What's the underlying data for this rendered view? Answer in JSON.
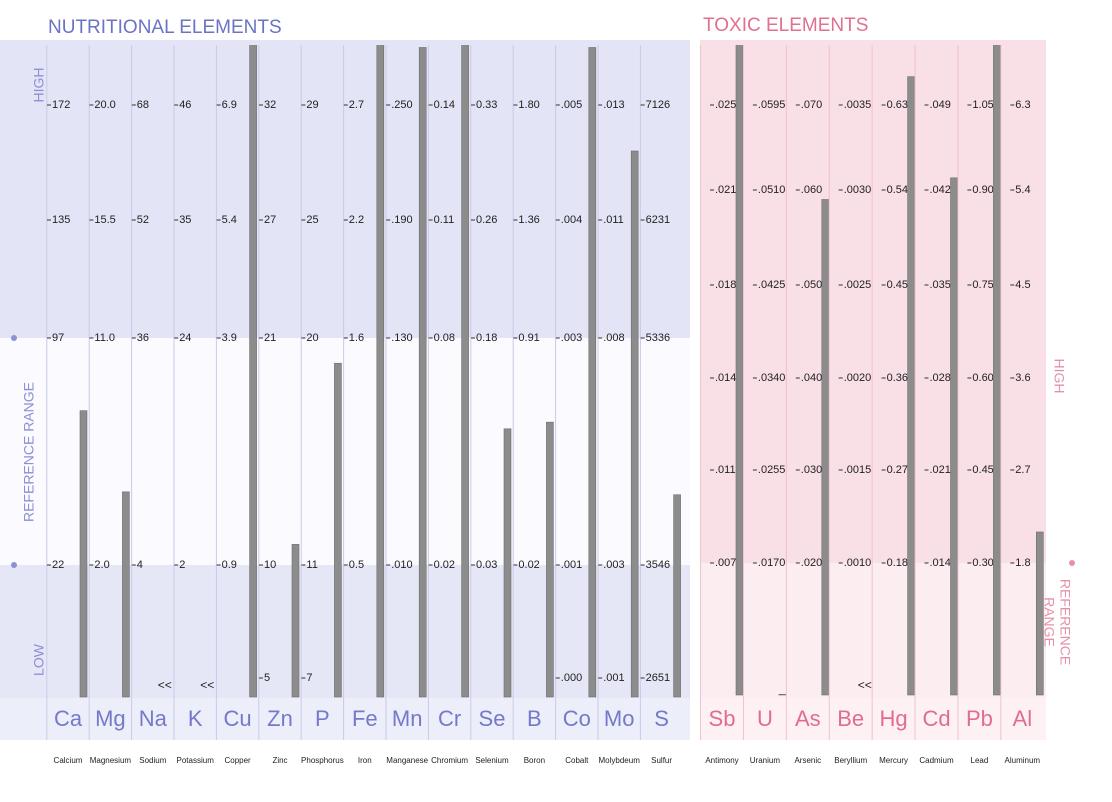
{
  "chart_data": [
    {
      "type": "bar",
      "title": "NUTRITIONAL ELEMENTS",
      "side_labels": [
        "HIGH",
        "REFERENCE RANGE",
        "LOW"
      ],
      "categories": [
        "Ca",
        "Mg",
        "Na",
        "K",
        "Cu",
        "Zn",
        "P",
        "Fe",
        "Mn",
        "Cr",
        "Se",
        "B",
        "Co",
        "Mo",
        "S"
      ],
      "category_names": [
        "Calcium",
        "Magnesium",
        "Sodium",
        "Potassium",
        "Copper",
        "Zinc",
        "Phosphorus",
        "Iron",
        "Manganese",
        "Chromium",
        "Selenium",
        "Boron",
        "Cobalt",
        "Molybdeum",
        "Sulfur"
      ],
      "values": [
        73,
        4.9,
        null,
        null,
        7.7,
        11.0,
        19,
        3.0,
        0.28,
        0.16,
        0.12,
        0.58,
        0.0055,
        0.0122,
        4100
      ],
      "value_labels": [
        null,
        null,
        "<<",
        "<<",
        null,
        null,
        null,
        null,
        null,
        null,
        null,
        null,
        null,
        null,
        null
      ],
      "color": "#8c8c8c",
      "scales": [
        [
          172,
          135,
          97,
          22
        ],
        [
          {
            "value": 20,
            "label": "20.0"
          },
          15.5,
          {
            "value": 11,
            "label": "11.0"
          },
          {
            "value": 2,
            "label": "2.0"
          }
        ],
        [
          68,
          52,
          36,
          4
        ],
        [
          46,
          35,
          24,
          2
        ],
        [
          6.9,
          5.4,
          3.9,
          0.9
        ],
        [
          32,
          27,
          21,
          10,
          5
        ],
        [
          29,
          25,
          20,
          11,
          7
        ],
        [
          2.7,
          2.2,
          1.6,
          0.5
        ],
        [
          {
            "value": 0.25,
            "label": ".250"
          },
          {
            "value": 0.19,
            "label": ".190"
          },
          {
            "value": 0.13,
            "label": ".130"
          },
          {
            "value": 0.01,
            "label": ".010"
          }
        ],
        [
          0.14,
          0.11,
          0.08,
          0.02
        ],
        [
          0.33,
          0.26,
          0.18,
          0.03
        ],
        [
          {
            "value": 1.8,
            "label": "1.80"
          },
          1.36,
          0.91,
          0.02
        ],
        [
          {
            "value": 0.005,
            "label": ".005"
          },
          {
            "value": 0.004,
            "label": ".004"
          },
          {
            "value": 0.003,
            "label": ".003"
          },
          {
            "value": 0.001,
            "label": ".001"
          },
          {
            "value": 0,
            "label": ".000"
          }
        ],
        [
          {
            "value": 0.013,
            "label": ".013"
          },
          {
            "value": 0.011,
            "label": ".011"
          },
          {
            "value": 0.008,
            "label": ".008"
          },
          {
            "value": 0.003,
            "label": ".003"
          },
          {
            "value": 0.001,
            "label": ".001"
          }
        ],
        [
          7126,
          6231,
          5336,
          3546,
          2651
        ]
      ]
    },
    {
      "type": "bar",
      "title": "TOXIC ELEMENTS",
      "side_labels": [
        "HIGH",
        "REFERENCE",
        "RANGE"
      ],
      "categories": [
        "Sb",
        "U",
        "As",
        "Be",
        "Hg",
        "Cd",
        "Pb",
        "Al"
      ],
      "category_names": [
        "Antimony",
        "Uranium",
        "Arsenic",
        "Beryllium",
        "Mercury",
        "Cadmium",
        "Lead",
        "Aluminum"
      ],
      "values": [
        0.028,
        0.005,
        0.059,
        null,
        0.66,
        0.043,
        1.16,
        2.1
      ],
      "value_labels": [
        null,
        null,
        null,
        "<<",
        null,
        null,
        null,
        null
      ],
      "color": "#8c8c8c",
      "scales": [
        [
          {
            "value": 0.025,
            "label": ".025"
          },
          {
            "value": 0.021,
            "label": ".021"
          },
          {
            "value": 0.018,
            "label": ".018"
          },
          {
            "value": 0.014,
            "label": ".014"
          },
          {
            "value": 0.011,
            "label": ".011"
          },
          {
            "value": 0.007,
            "label": ".007"
          }
        ],
        [
          {
            "value": 0.0595,
            "label": ".0595"
          },
          {
            "value": 0.051,
            "label": ".0510"
          },
          {
            "value": 0.0425,
            "label": ".0425"
          },
          {
            "value": 0.034,
            "label": ".0340"
          },
          {
            "value": 0.0255,
            "label": ".0255"
          },
          {
            "value": 0.017,
            "label": ".0170"
          }
        ],
        [
          {
            "value": 0.07,
            "label": ".070"
          },
          {
            "value": 0.06,
            "label": ".060"
          },
          {
            "value": 0.05,
            "label": ".050"
          },
          {
            "value": 0.04,
            "label": ".040"
          },
          {
            "value": 0.03,
            "label": ".030"
          },
          {
            "value": 0.02,
            "label": ".020"
          }
        ],
        [
          {
            "value": 0.0035,
            "label": ".0035"
          },
          {
            "value": 0.003,
            "label": ".0030"
          },
          {
            "value": 0.0025,
            "label": ".0025"
          },
          {
            "value": 0.002,
            "label": ".0020"
          },
          {
            "value": 0.0015,
            "label": ".0015"
          },
          {
            "value": 0.001,
            "label": ".0010"
          }
        ],
        [
          0.63,
          0.54,
          0.45,
          0.36,
          0.27,
          0.18
        ],
        [
          {
            "value": 0.049,
            "label": ".049"
          },
          {
            "value": 0.042,
            "label": ".042"
          },
          {
            "value": 0.035,
            "label": ".035"
          },
          {
            "value": 0.028,
            "label": ".028"
          },
          {
            "value": 0.021,
            "label": ".021"
          },
          {
            "value": 0.014,
            "label": ".014"
          }
        ],
        [
          1.05,
          {
            "value": 0.9,
            "label": "0.90"
          },
          0.75,
          {
            "value": 0.6,
            "label": "0.60"
          },
          0.45,
          {
            "value": 0.3,
            "label": "0.30"
          }
        ],
        [
          6.3,
          5.4,
          4.5,
          3.6,
          2.7,
          1.8
        ]
      ]
    }
  ]
}
